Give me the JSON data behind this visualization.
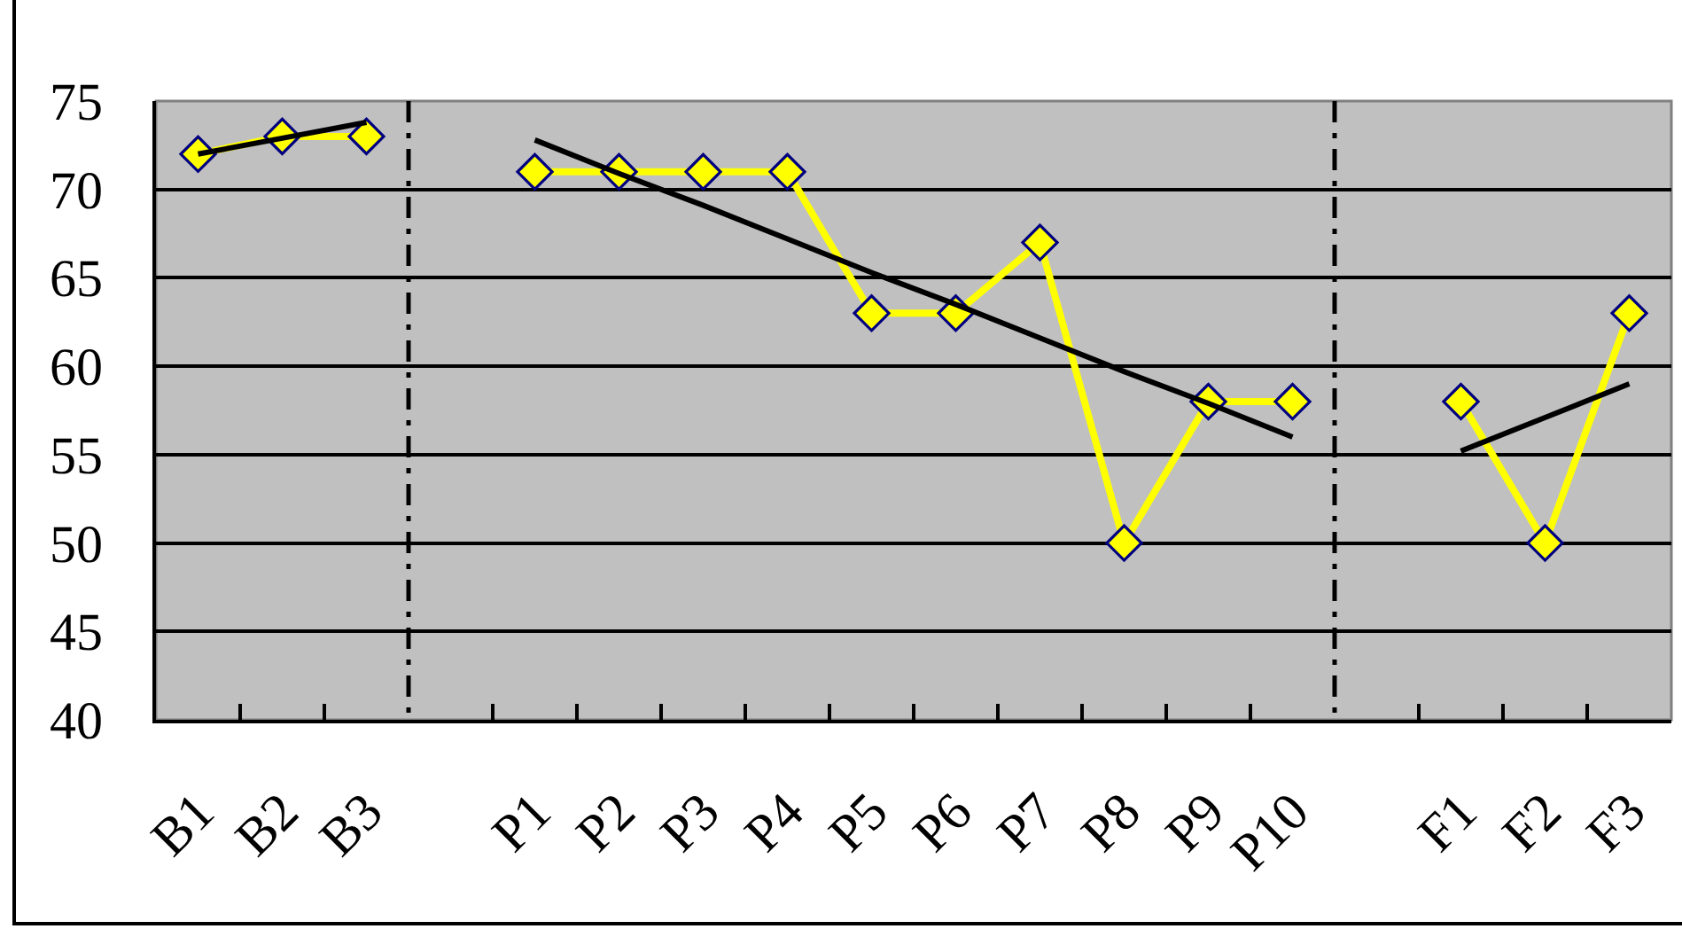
{
  "chart_data": {
    "type": "line",
    "categories": [
      "B1",
      "B2",
      "B3",
      null,
      "P1",
      "P2",
      "P3",
      "P4",
      "P5",
      "P6",
      "P7",
      "P8",
      "P9",
      "P10",
      null,
      "F1",
      "F2",
      "F3"
    ],
    "series": [
      {
        "color": "#ffff00",
        "values": [
          72,
          73,
          73,
          null,
          71,
          71,
          71,
          71,
          63,
          63,
          67,
          50,
          58,
          58,
          null,
          58,
          50,
          63
        ]
      },
      {
        "type": "line",
        "color": "#000000",
        "marker": "none",
        "values": [
          72.0,
          72.9,
          73.8,
          null,
          72.8,
          70.9,
          69.1,
          67.2,
          65.3,
          63.5,
          61.6,
          59.7,
          57.9,
          56.0,
          null,
          55.2,
          57.1,
          59.0
        ]
      }
    ],
    "ylim": [
      40,
      75
    ],
    "yticks": [
      40,
      45,
      50,
      55,
      60,
      65,
      70,
      75
    ],
    "grid": "y",
    "marker": "diamond",
    "line_style": "solid"
  }
}
